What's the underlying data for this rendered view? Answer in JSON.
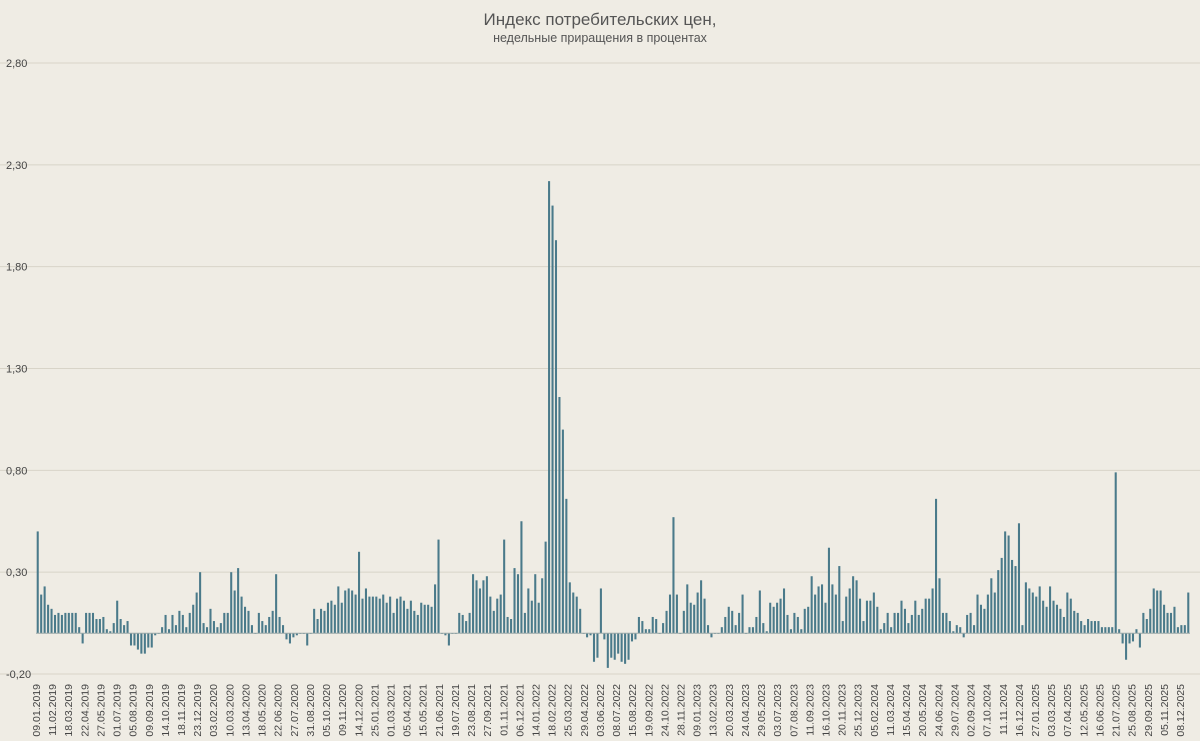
{
  "chart_data": {
    "type": "bar",
    "title": "Индекс потребительских цен,",
    "subtitle": "недельные приращения в процентах",
    "xlabel": "",
    "ylabel": "",
    "ylim": [
      -0.2,
      2.8
    ],
    "yticks": [
      "-0,20",
      "0,30",
      "0,80",
      "1,30",
      "1,80",
      "2,30",
      "2,80"
    ],
    "ytick_values": [
      -0.2,
      0.3,
      0.8,
      1.3,
      1.8,
      2.3,
      2.8
    ],
    "grid": true,
    "bar_color": "#4a7a8a",
    "categories_shown": [
      "09.01.2019",
      "11.02.2019",
      "18.03.2019",
      "22.04.2019",
      "27.05.2019",
      "01.07.2019",
      "05.08.2019",
      "09.09.2019",
      "14.10.2019",
      "18.11.2019",
      "23.12.2019",
      "03.02.2020",
      "10.03.2020",
      "13.04.2020",
      "18.05.2020",
      "22.06.2020",
      "27.07.2020",
      "31.08.2020",
      "05.10.2020",
      "09.11.2020",
      "14.12.2020",
      "25.01.2021",
      "01.03.2021",
      "05.04.2021",
      "15.05.2021",
      "21.06.2021",
      "19.07.2021",
      "23.08.2021",
      "27.09.2021",
      "01.11.2021",
      "06.12.2021",
      "14.01.2022",
      "18.02.2022",
      "25.03.2022",
      "29.04.2022",
      "03.06.2022",
      "08.07.2022",
      "15.08.2022",
      "19.09.2022",
      "24.10.2022",
      "28.11.2022",
      "09.01.2023",
      "13.02.2023",
      "20.03.2023",
      "24.04.2023",
      "29.05.2023",
      "03.07.2023",
      "07.08.2023",
      "11.09.2023",
      "16.10.2023",
      "20.11.2023",
      "25.12.2023",
      "05.02.2024",
      "11.03.2024",
      "15.04.2024",
      "20.05.2024",
      "24.06.2024",
      "29.07.2024",
      "02.09.2024",
      "07.10.2024",
      "11.11.2024",
      "16.12.2024",
      "27.01.2025",
      "03.03.2025",
      "07.04.2025",
      "12.05.2025",
      "16.06.2025",
      "21.07.2025",
      "25.08.2025",
      "29.09.2025",
      "05.11.2025",
      "08.12.2025"
    ],
    "values": [
      0.5,
      0.19,
      0.23,
      0.14,
      0.12,
      0.09,
      0.1,
      0.09,
      0.1,
      0.1,
      0.1,
      0.1,
      0.03,
      -0.05,
      0.1,
      0.1,
      0.1,
      0.07,
      0.07,
      0.08,
      0.02,
      0.01,
      0.05,
      0.16,
      0.07,
      0.04,
      0.06,
      -0.06,
      -0.06,
      -0.08,
      -0.1,
      -0.1,
      -0.07,
      -0.07,
      -0.01,
      0.0,
      0.03,
      0.09,
      0.02,
      0.09,
      0.04,
      0.11,
      0.09,
      0.03,
      0.1,
      0.14,
      0.2,
      0.3,
      0.05,
      0.03,
      0.12,
      0.06,
      0.03,
      0.05,
      0.1,
      0.1,
      0.3,
      0.21,
      0.32,
      0.18,
      0.13,
      0.11,
      0.04,
      0.0,
      0.1,
      0.06,
      0.04,
      0.08,
      0.11,
      0.29,
      0.08,
      0.04,
      -0.03,
      -0.05,
      -0.02,
      -0.01,
      0.0,
      0.0,
      -0.06,
      0.0,
      0.12,
      0.07,
      0.12,
      0.11,
      0.15,
      0.16,
      0.14,
      0.23,
      0.15,
      0.21,
      0.22,
      0.21,
      0.19,
      0.4,
      0.17,
      0.22,
      0.18,
      0.18,
      0.18,
      0.17,
      0.19,
      0.15,
      0.18,
      0.1,
      0.17,
      0.18,
      0.16,
      0.12,
      0.16,
      0.11,
      0.09,
      0.15,
      0.14,
      0.14,
      0.13,
      0.24,
      0.46,
      0.0,
      -0.01,
      -0.06,
      0.0,
      0.0,
      0.1,
      0.09,
      0.06,
      0.1,
      0.29,
      0.26,
      0.22,
      0.26,
      0.28,
      0.18,
      0.11,
      0.17,
      0.19,
      0.46,
      0.08,
      0.07,
      0.32,
      0.29,
      0.55,
      0.1,
      0.22,
      0.16,
      0.29,
      0.15,
      0.27,
      0.45,
      2.22,
      2.1,
      1.93,
      1.16,
      1.0,
      0.66,
      0.25,
      0.2,
      0.18,
      0.12,
      0.0,
      -0.02,
      -0.01,
      -0.14,
      -0.12,
      0.22,
      -0.03,
      -0.17,
      -0.12,
      -0.13,
      -0.1,
      -0.14,
      -0.15,
      -0.13,
      -0.04,
      -0.03,
      0.08,
      0.06,
      0.02,
      0.02,
      0.08,
      0.07,
      0.0,
      0.05,
      0.11,
      0.19,
      0.57,
      0.19,
      0.0,
      0.11,
      0.24,
      0.15,
      0.14,
      0.2,
      0.26,
      0.17,
      0.04,
      -0.02,
      0.0,
      0.0,
      0.03,
      0.08,
      0.13,
      0.11,
      0.04,
      0.1,
      0.19,
      0.0,
      0.03,
      0.03,
      0.08,
      0.21,
      0.05,
      0.01,
      0.15,
      0.13,
      0.15,
      0.17,
      0.22,
      0.09,
      0.02,
      0.1,
      0.08,
      0.02,
      0.12,
      0.13,
      0.28,
      0.19,
      0.23,
      0.24,
      0.15,
      0.42,
      0.24,
      0.19,
      0.33,
      0.06,
      0.18,
      0.22,
      0.28,
      0.26,
      0.17,
      0.06,
      0.16,
      0.16,
      0.2,
      0.13,
      0.02,
      0.05,
      0.1,
      0.03,
      0.1,
      0.1,
      0.16,
      0.12,
      0.05,
      0.09,
      0.16,
      0.09,
      0.12,
      0.17,
      0.17,
      0.22,
      0.66,
      0.27,
      0.1,
      0.1,
      0.06,
      0.01,
      0.04,
      0.03,
      -0.02,
      0.09,
      0.1,
      0.04,
      0.19,
      0.14,
      0.12,
      0.19,
      0.27,
      0.2,
      0.31,
      0.37,
      0.5,
      0.48,
      0.36,
      0.33,
      0.54,
      0.04,
      0.25,
      0.22,
      0.2,
      0.18,
      0.23,
      0.16,
      0.13,
      0.23,
      0.16,
      0.14,
      0.12,
      0.08,
      0.2,
      0.17,
      0.11,
      0.1,
      0.06,
      0.04,
      0.07,
      0.06,
      0.06,
      0.06,
      0.03,
      0.03,
      0.03,
      0.03,
      0.79,
      0.02,
      -0.05,
      -0.13,
      -0.05,
      -0.04,
      0.02,
      -0.07,
      0.1,
      0.07,
      0.12,
      0.22,
      0.21,
      0.21,
      0.14,
      0.1,
      0.1,
      0.13,
      0.03,
      0.04,
      0.04,
      0.2
    ]
  }
}
